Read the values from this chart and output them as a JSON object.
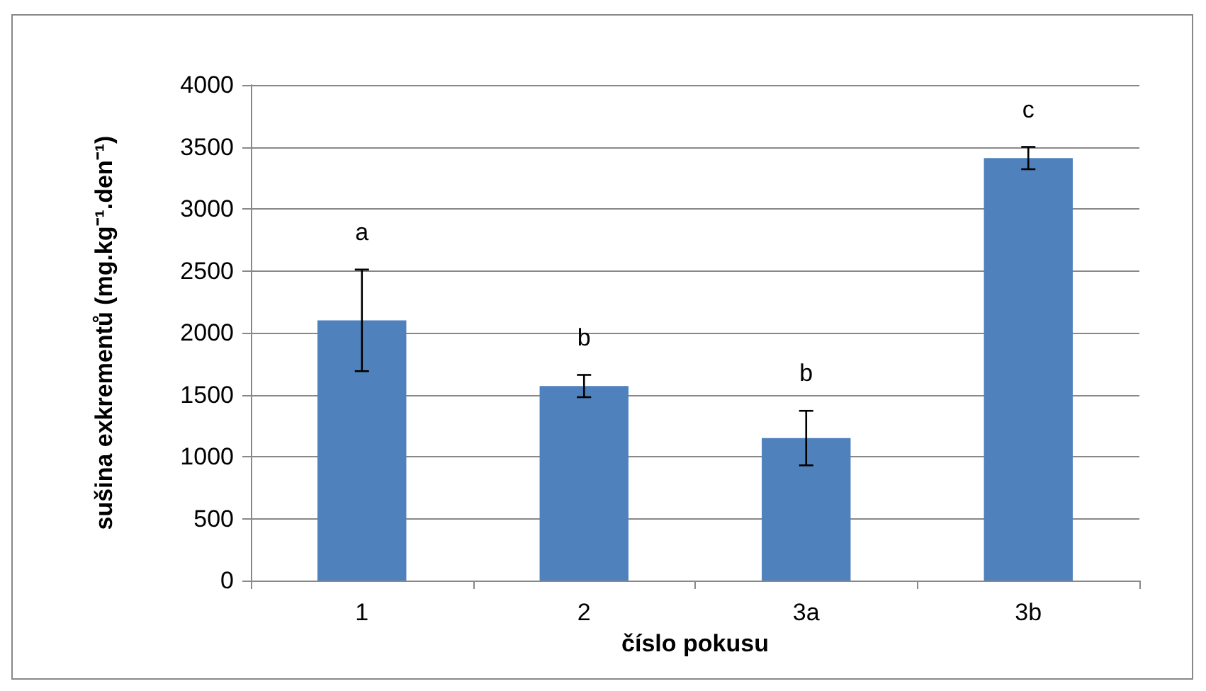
{
  "chart_data": {
    "type": "bar",
    "xlabel": "číslo pokusu",
    "ylabel": "sušina exkrementů (mg.kg⁻¹.den⁻¹)",
    "categories": [
      "1",
      "2",
      "3a",
      "3b"
    ],
    "values": [
      2100,
      1570,
      1150,
      3410
    ],
    "errors": [
      410,
      90,
      220,
      90
    ],
    "color": "#4f81bd",
    "ylim": [
      0,
      4000
    ],
    "yticks": [
      0,
      500,
      1000,
      1500,
      2000,
      2500,
      3000,
      3500,
      4000
    ],
    "grid": "y",
    "annotations": [
      "a",
      "b",
      "b",
      "c"
    ]
  }
}
